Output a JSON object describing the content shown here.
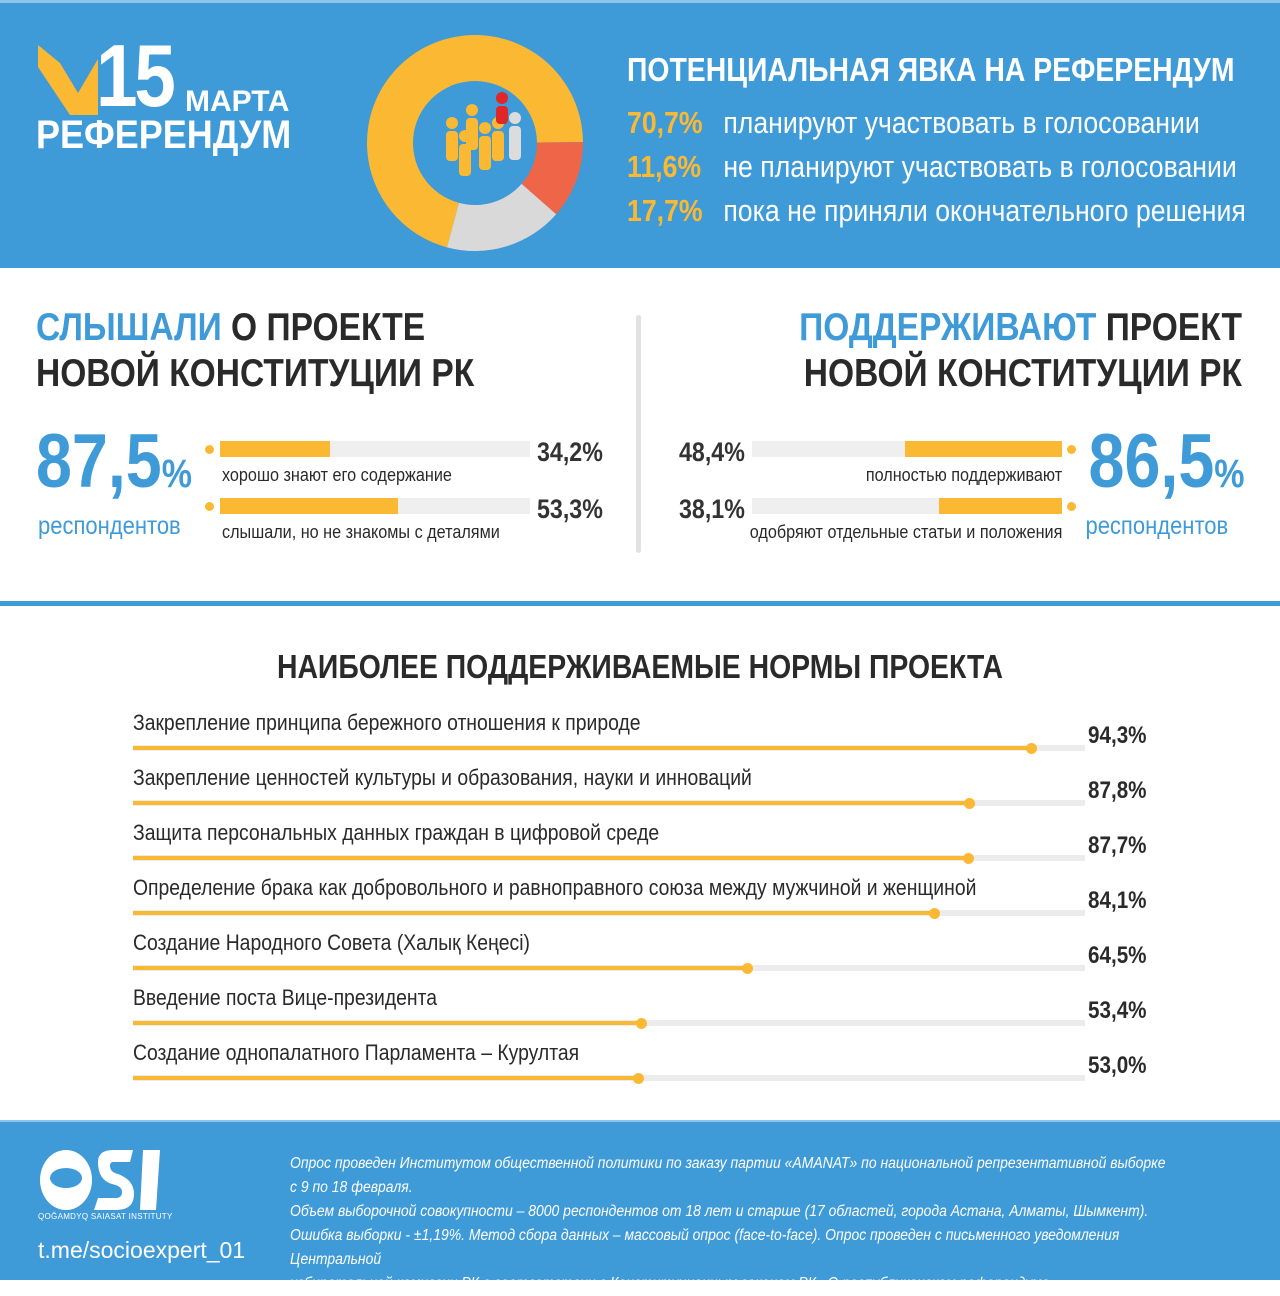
{
  "header": {
    "logo_number": "15",
    "logo_month": "МАРТА",
    "logo_word": "РЕФЕРЕНДУМ",
    "turnout_title": "ПОТЕНЦИАЛЬНАЯ ЯВКА НА РЕФЕРЕНДУМ",
    "turnout": [
      {
        "pct": "70,7%",
        "text": "планируют участвовать в голосовании"
      },
      {
        "pct": "11,6%",
        "text": "не планируют участвовать в голосовании"
      },
      {
        "pct": "17,7%",
        "text": "пока не приняли окончательного решения"
      }
    ]
  },
  "heard": {
    "title_accent": "СЛЫШАЛИ",
    "title_rest1": " О ПРОЕКТЕ",
    "title_line2": "НОВОЙ КОНСТИТУЦИИ РК",
    "total_num": "87,5",
    "total_unit": "%",
    "respondents": "респондентов",
    "bars": [
      {
        "label": "хорошо знают его содержание",
        "pct": "34,2%"
      },
      {
        "label": "слышали, но не знакомы с деталями",
        "pct": "53,3%"
      }
    ]
  },
  "support": {
    "title_accent": "ПОДДЕРЖИВАЮТ",
    "title_rest1": " ПРОЕКТ",
    "title_line2": "НОВОЙ КОНСТИТУЦИИ РК",
    "total_num": "86,5",
    "total_unit": "%",
    "respondents": "респондентов",
    "bars": [
      {
        "label": "полностью поддерживают",
        "pct": "48,4%"
      },
      {
        "label": "одобряют отдельные статьи и положения",
        "pct": "38,1%"
      }
    ]
  },
  "norms": {
    "title": "НАИБОЛЕЕ ПОДДЕРЖИВАЕМЫЕ НОРМЫ ПРОЕКТА",
    "items": [
      {
        "label": "Закрепление принципа бережного отношения к природе",
        "pct": "94,3%"
      },
      {
        "label": "Закрепление ценностей культуры и образования, науки и инноваций",
        "pct": "87,8%"
      },
      {
        "label": "Защита персональных данных граждан в цифровой среде",
        "pct": "87,7%"
      },
      {
        "label": "Определение брака как добровольного и равноправного союза между мужчиной и женщиной",
        "pct": "84,1%"
      },
      {
        "label": "Создание Народного Совета (Халық Кеңесі)",
        "pct": "64,5%"
      },
      {
        "label": "Введение поста Вице-президента",
        "pct": "53,4%"
      },
      {
        "label": "Создание однопалатного Парламента – Курултая",
        "pct": "53,0%"
      }
    ]
  },
  "footer": {
    "logo": "QSI",
    "logo_sub": "QOĞAMDYQ SAIASAT INSTITUTY",
    "link": "t.me/socioexpert_01",
    "note": [
      "Опрос проведен Институтом общественной политики по заказу партии «AMANAT» по национальной репрезентативной выборке с 9 по 18 февраля.",
      "Объем выборочной совокупности – 8000 респондентов от 18 лет и старше (17 областей, города Астана, Алматы, Шымкент).",
      "Ошибка выборки - ±1,19%. Метод сбора данных – массовый опрос (face-to-face). Опрос проведен с письменного уведомления Центральной",
      "избирательной комиссии РК в соответствии с Конституционным законом РК «О республиканском референдуме»."
    ]
  },
  "colors": {
    "blue": "#3f9ad8",
    "yellow": "#fbb933",
    "red": "#ef6548",
    "gray": "#d9d9d9"
  },
  "chart_data": [
    {
      "type": "pie",
      "title": "ПОТЕНЦИАЛЬНАЯ ЯВКА НА РЕФЕРЕНДУМ",
      "categories": [
        "планируют участвовать в голосовании",
        "не планируют участвовать в голосовании",
        "пока не приняли окончательного решения"
      ],
      "values": [
        70.7,
        11.6,
        17.7
      ],
      "colors": [
        "#fbb933",
        "#ef6548",
        "#d9d9d9"
      ]
    },
    {
      "type": "bar",
      "title": "СЛЫШАЛИ О ПРОЕКТЕ НОВОЙ КОНСТИТУЦИИ РК",
      "categories": [
        "хорошо знают его содержание",
        "слышали, но не знакомы с деталями"
      ],
      "values": [
        34.2,
        53.3
      ],
      "total": 87.5
    },
    {
      "type": "bar",
      "title": "ПОДДЕРЖИВАЮТ ПРОЕКТ НОВОЙ КОНСТИТУЦИИ РК",
      "categories": [
        "полностью поддерживают",
        "одобряют отдельные статьи и положения"
      ],
      "values": [
        48.4,
        38.1
      ],
      "total": 86.5
    },
    {
      "type": "bar",
      "title": "НАИБОЛЕЕ ПОДДЕРЖИВАЕМЫЕ НОРМЫ ПРОЕКТА",
      "values": [
        94.3,
        87.8,
        87.7,
        84.1,
        64.5,
        53.4,
        53.0
      ],
      "xlim": [
        0,
        100
      ]
    }
  ]
}
